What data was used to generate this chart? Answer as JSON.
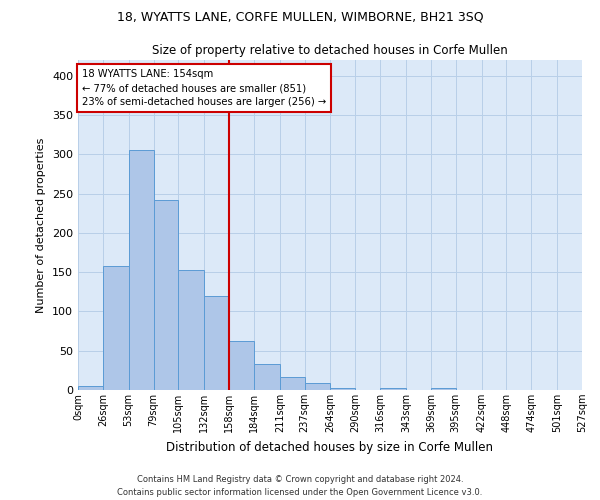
{
  "title": "18, WYATTS LANE, CORFE MULLEN, WIMBORNE, BH21 3SQ",
  "subtitle": "Size of property relative to detached houses in Corfe Mullen",
  "xlabel": "Distribution of detached houses by size in Corfe Mullen",
  "ylabel": "Number of detached properties",
  "bin_labels": [
    "0sqm",
    "26sqm",
    "53sqm",
    "79sqm",
    "105sqm",
    "132sqm",
    "158sqm",
    "184sqm",
    "211sqm",
    "237sqm",
    "264sqm",
    "290sqm",
    "316sqm",
    "343sqm",
    "369sqm",
    "395sqm",
    "422sqm",
    "448sqm",
    "474sqm",
    "501sqm",
    "527sqm"
  ],
  "bar_heights": [
    5,
    158,
    305,
    242,
    153,
    120,
    62,
    33,
    16,
    9,
    3,
    0,
    3,
    0,
    3,
    0,
    0,
    0,
    0,
    0
  ],
  "bar_color": "#aec6e8",
  "bar_edge_color": "#5b9bd5",
  "vline_x": 158,
  "vline_color": "#cc0000",
  "annotation_title": "18 WYATTS LANE: 154sqm",
  "annotation_line1": "← 77% of detached houses are smaller (851)",
  "annotation_line2": "23% of semi-detached houses are larger (256) →",
  "annotation_box_color": "#ffffff",
  "annotation_box_edge": "#cc0000",
  "ylim": [
    0,
    420
  ],
  "yticks": [
    0,
    50,
    100,
    150,
    200,
    250,
    300,
    350,
    400
  ],
  "footer1": "Contains HM Land Registry data © Crown copyright and database right 2024.",
  "footer2": "Contains public sector information licensed under the Open Government Licence v3.0.",
  "bg_color": "#dce9f8",
  "plot_bg_color": "#ffffff",
  "fig_width": 6.0,
  "fig_height": 5.0,
  "dpi": 100
}
